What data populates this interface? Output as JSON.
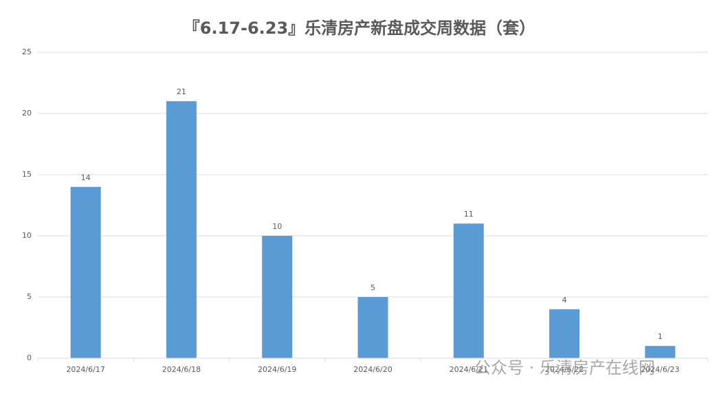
{
  "chart_data": {
    "type": "bar",
    "title": "『6.17-6.23』乐清房产新盘成交周数据（套）",
    "categories": [
      "2024/6/17",
      "2024/6/18",
      "2024/6/19",
      "2024/6/20",
      "2024/6/21",
      "2024/6/22",
      "2024/6/23"
    ],
    "values": [
      14,
      21,
      10,
      5,
      11,
      4,
      1
    ],
    "color": "#5b9bd5",
    "ylim": [
      0,
      25
    ],
    "yticks": [
      0,
      5,
      10,
      15,
      20,
      25
    ],
    "grid": true,
    "watermark": "公众号 · 乐清房产在线网"
  }
}
